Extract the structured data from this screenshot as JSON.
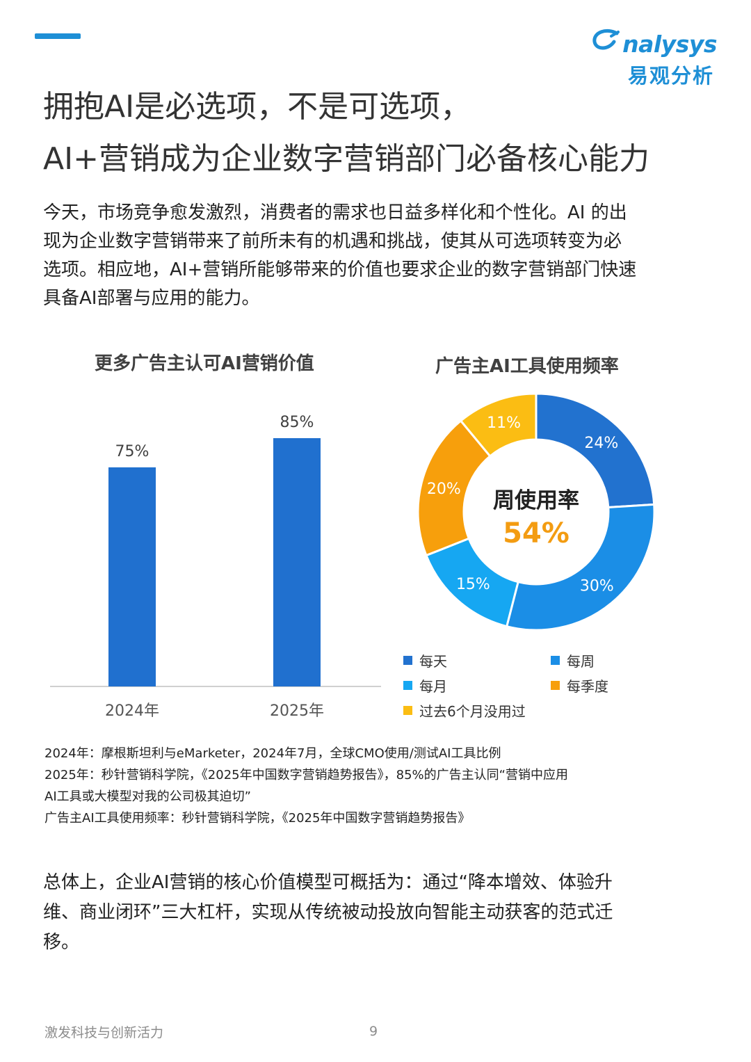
{
  "brand": {
    "logo_en": "nalysys",
    "logo_cn": "易观分析",
    "accent_color": "#1e8fd6"
  },
  "title_lines": [
    "拥抱AI是必选项，不是可选项，",
    "AI+营销成为企业数字营销部门必备核心能力"
  ],
  "intro_lines": [
    "今天，市场竞争愈发激烈，消费者的需求也日益多样化和个性化。AI 的出",
    "现为企业数字营销带来了前所未有的机遇和挑战，使其从可选项转变为必",
    "选项。相应地，AI+营销所能够带来的价值也要求企业的数字营销部门快速",
    "具备AI部署与应用的能力。"
  ],
  "chart_data": [
    {
      "type": "bar",
      "title": "更多广告主认可AI营销价值",
      "categories": [
        "2024年",
        "2025年"
      ],
      "values": [
        75,
        85
      ],
      "value_labels": [
        "75%",
        "85%"
      ],
      "unit": "%",
      "ylim": [
        0,
        100
      ],
      "bar_color": "#2070cf",
      "grid": false,
      "legend": "none"
    },
    {
      "type": "pie",
      "variant": "donut",
      "title": "广告主AI工具使用频率",
      "center_label": "周使用率",
      "center_value": "54%",
      "center_value_color": "#f39c12",
      "slices": [
        {
          "name": "每天",
          "value": 24,
          "label": "24%",
          "color": "#2272cf"
        },
        {
          "name": "每周",
          "value": 30,
          "label": "30%",
          "color": "#1b8ee6"
        },
        {
          "name": "每月",
          "value": 15,
          "label": "15%",
          "color": "#16a7f2"
        },
        {
          "name": "每季度",
          "value": 20,
          "label": "20%",
          "color": "#f79f0c"
        },
        {
          "name": "过去6个月没用过",
          "value": 11,
          "label": "11%",
          "color": "#fbbd13"
        }
      ],
      "legend": "bottom"
    }
  ],
  "source_lines": [
    "2024年：摩根斯坦利与eMarketer，2024年7月，全球CMO使用/测试AI工具比例",
    "2025年：秒针营销科学院，《2025年中国数字营销趋势报告》，85%的广告主认同“营销中应用",
    "AI工具或大模型对我的公司极其迫切”",
    "广告主AI工具使用频率：秒针营销科学院，《2025年中国数字营销趋势报告》"
  ],
  "summary_lines": [
    "总体上，企业AI营销的核心价值模型可概括为：通过“降本增效、体验升",
    "维、商业闭环”三大杠杆，实现从传统被动投放向智能主动获客的范式迁",
    "移。"
  ],
  "footer": {
    "left_text": "激发科技与创新活力",
    "page_number": "9"
  }
}
